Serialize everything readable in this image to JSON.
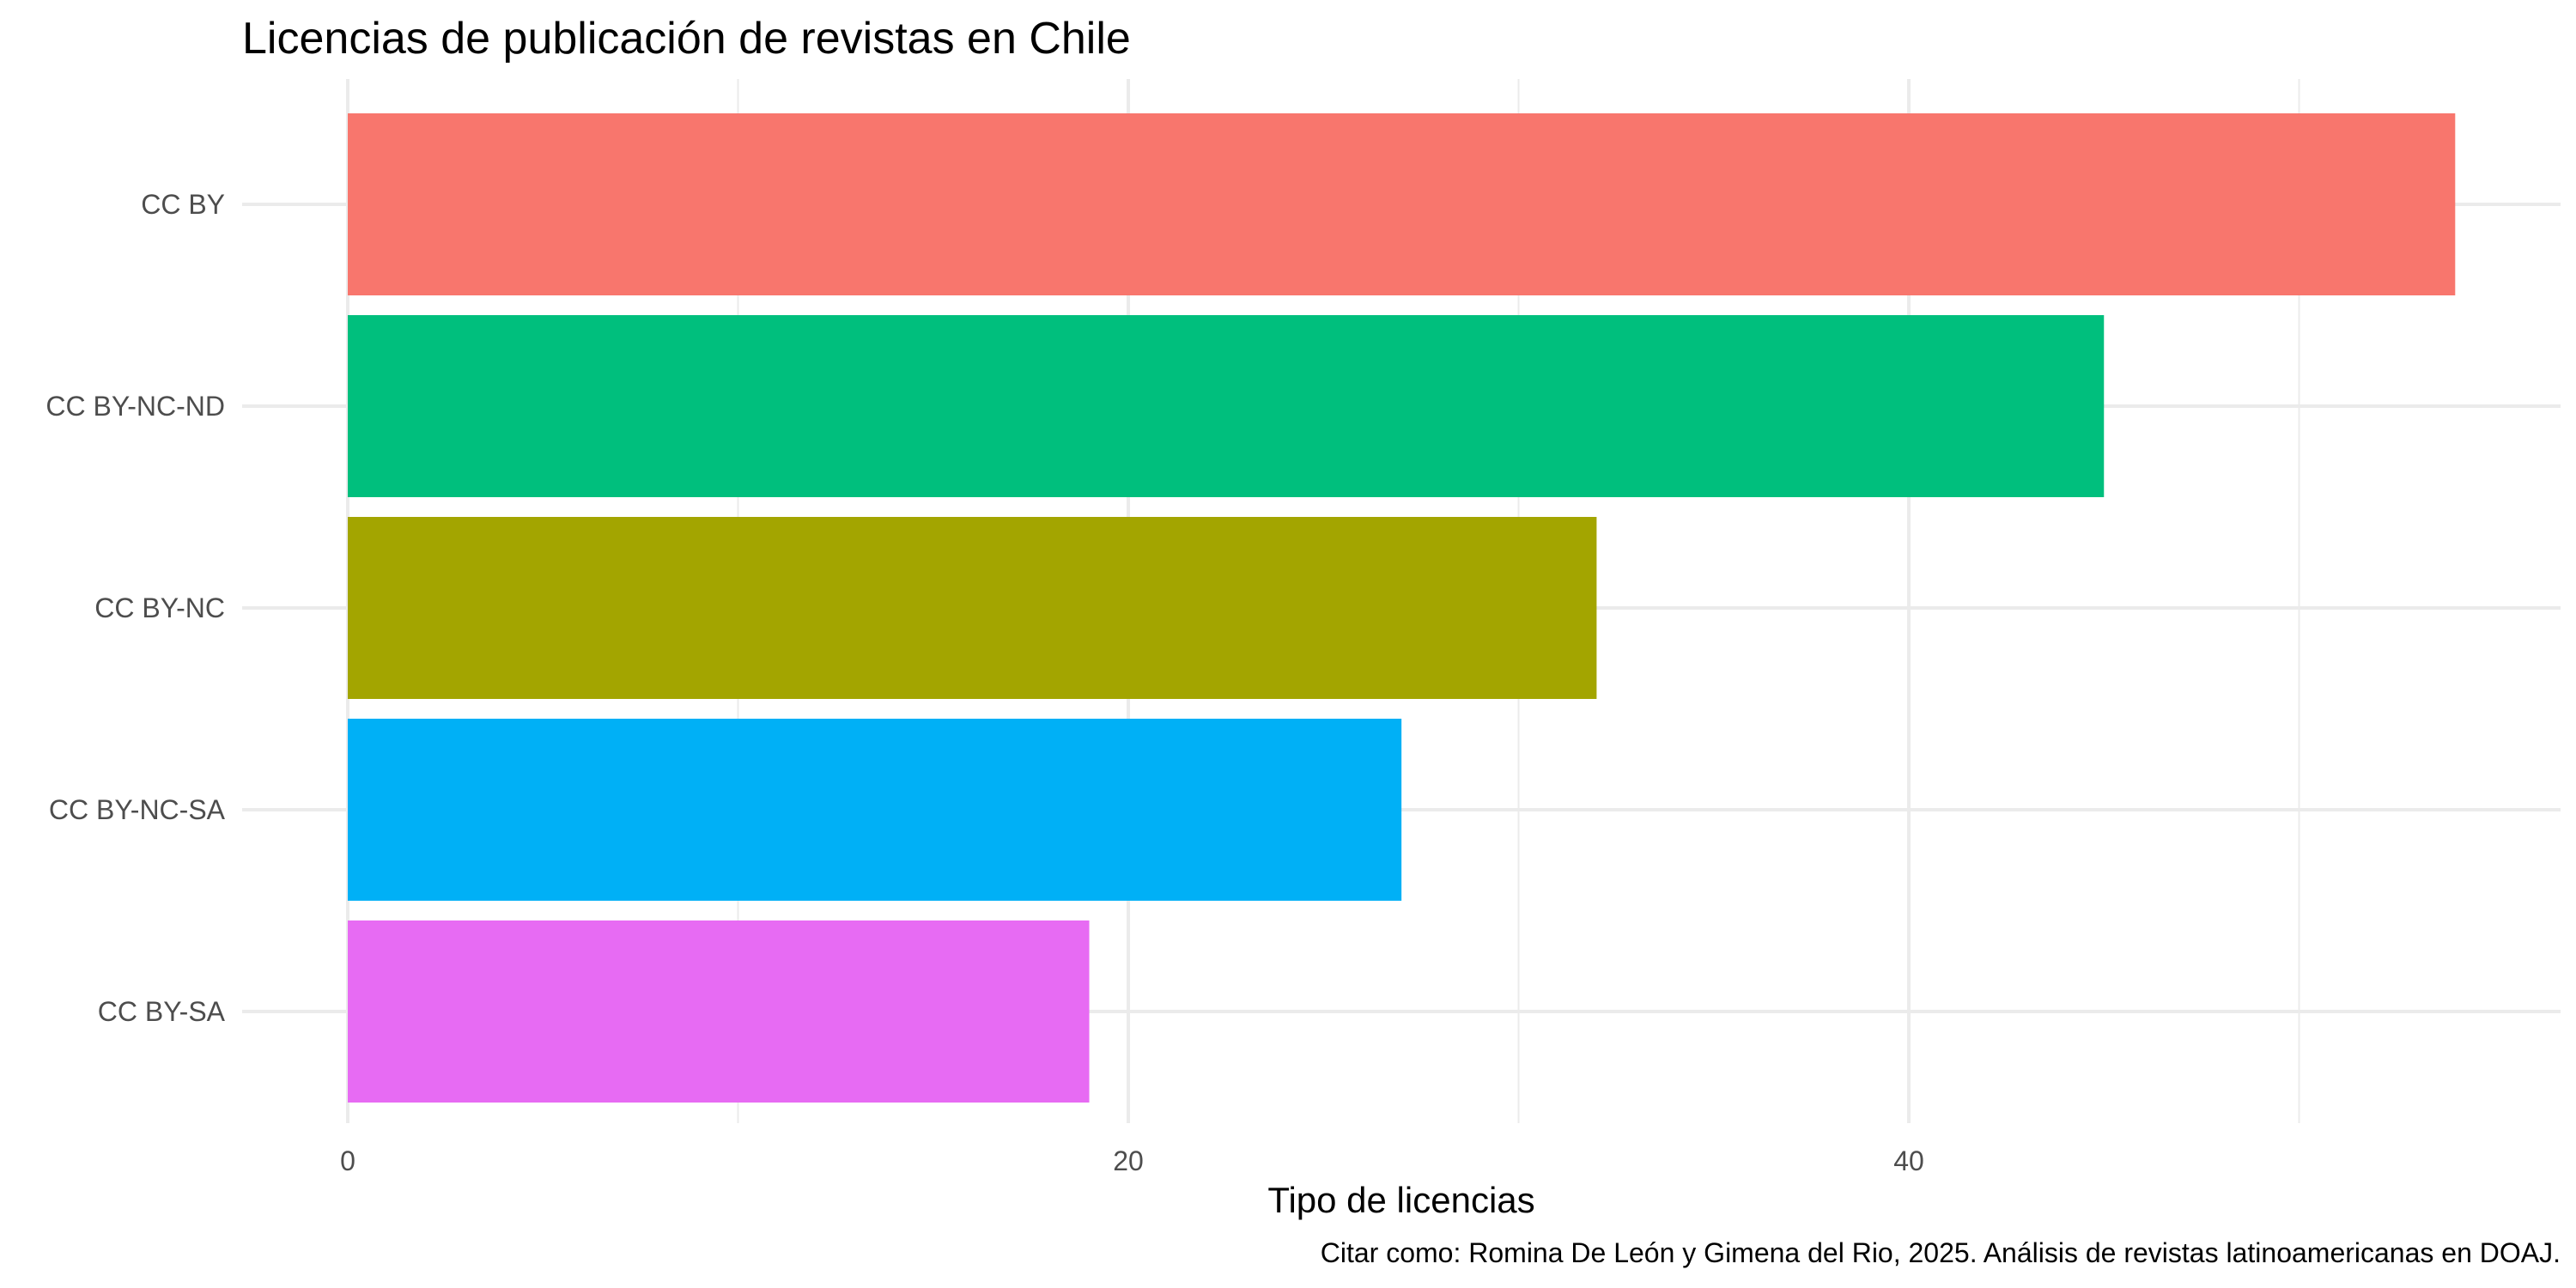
{
  "chart_data": {
    "type": "bar",
    "orientation": "horizontal",
    "title": "Licencias de publicación de revistas en Chile",
    "xlabel": "Tipo de licencias",
    "ylabel": "",
    "caption": "Citar como: Romina De León y Gimena del Rio, 2025. Análisis de revistas latinoamericanas en DOAJ.",
    "categories": [
      "CC BY",
      "CC BY-NC-ND",
      "CC BY-NC",
      "CC BY-NC-SA",
      "CC BY-SA"
    ],
    "values": [
      54,
      45,
      32,
      27,
      19
    ],
    "colors": [
      "#F8766D",
      "#00BF7D",
      "#A3A500",
      "#00B0F6",
      "#E76BF3"
    ],
    "xlim": [
      0,
      54
    ],
    "xticks": [
      0,
      20,
      40
    ],
    "xtick_labels": [
      "0",
      "20",
      "40"
    ],
    "grid": true,
    "legend": "none"
  }
}
